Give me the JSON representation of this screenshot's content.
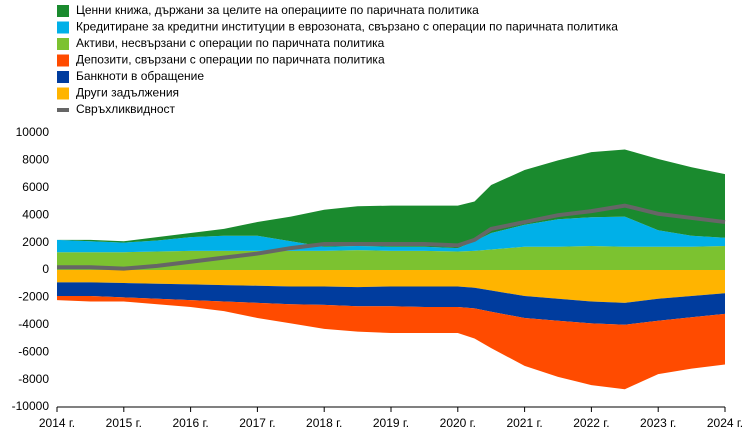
{
  "chart_data": {
    "type": "area",
    "x": [
      2014,
      2014.5,
      2015,
      2015.5,
      2016,
      2016.5,
      2017,
      2017.5,
      2018,
      2018.5,
      2019,
      2019.5,
      2020,
      2020.25,
      2020.5,
      2021,
      2021.5,
      2022,
      2022.5,
      2023,
      2023.5,
      2024
    ],
    "series": [
      {
        "name": "Ценни книжа, държани за целите на операциите по паричната политика",
        "type": "area",
        "color": "#1a8a2e",
        "values": [
          0,
          100,
          100,
          250,
          300,
          500,
          1000,
          1800,
          2700,
          2900,
          3000,
          3000,
          3100,
          2900,
          3500,
          4000,
          4300,
          4750,
          4900,
          5200,
          5000,
          4650
        ]
      },
      {
        "name": "Кредитиране за кредитни институции в еврозоната, свързано с операции по паричната политика",
        "type": "area",
        "color": "#00b0e8",
        "values": [
          900,
          800,
          700,
          800,
          1000,
          1100,
          1100,
          700,
          300,
          300,
          300,
          300,
          250,
          700,
          1200,
          1600,
          2000,
          2100,
          2200,
          1200,
          800,
          600
        ]
      },
      {
        "name": "Активи, несвързани с операции по паричната политика",
        "type": "area",
        "color": "#7cc230",
        "values": [
          1300,
          1300,
          1300,
          1350,
          1400,
          1400,
          1400,
          1400,
          1400,
          1450,
          1400,
          1400,
          1350,
          1400,
          1500,
          1700,
          1700,
          1750,
          1700,
          1700,
          1700,
          1750
        ]
      },
      {
        "name": "Депозити, свързани с операции по паричната политика",
        "type": "area",
        "color": "#ff4b00",
        "values": [
          -300,
          -400,
          -300,
          -400,
          -500,
          -700,
          -1100,
          -1400,
          -1750,
          -1850,
          -1950,
          -1900,
          -1900,
          -2200,
          -2650,
          -3500,
          -4100,
          -4500,
          -4700,
          -3900,
          -3750,
          -3700
        ]
      },
      {
        "name": "Банкноти в обращение",
        "type": "area",
        "color": "#003c9e",
        "values": [
          -1000,
          -1000,
          -1050,
          -1100,
          -1150,
          -1200,
          -1250,
          -1300,
          -1350,
          -1400,
          -1450,
          -1500,
          -1500,
          -1500,
          -1550,
          -1600,
          -1600,
          -1600,
          -1600,
          -1600,
          -1550,
          -1500
        ]
      },
      {
        "name": "Други задължения",
        "type": "area",
        "color": "#ffb400",
        "values": [
          -900,
          -900,
          -950,
          -1000,
          -1050,
          -1100,
          -1150,
          -1200,
          -1200,
          -1250,
          -1200,
          -1200,
          -1200,
          -1300,
          -1500,
          -1900,
          -2100,
          -2300,
          -2400,
          -2100,
          -1900,
          -1700
        ]
      },
      {
        "name": "Свръхликвидност",
        "type": "line",
        "color": "#666666",
        "values": [
          200,
          200,
          100,
          300,
          600,
          900,
          1200,
          1600,
          1900,
          1900,
          1900,
          1900,
          1800,
          2200,
          3000,
          3500,
          4000,
          4300,
          4700,
          4100,
          3800,
          3500
        ]
      }
    ],
    "xlim": [
      2014,
      2024
    ],
    "xticks": [
      {
        "value": 2014,
        "label": "2014 г."
      },
      {
        "value": 2015,
        "label": "2015 г."
      },
      {
        "value": 2016,
        "label": "2016 г."
      },
      {
        "value": 2017,
        "label": "2017 г."
      },
      {
        "value": 2018,
        "label": "2018 г."
      },
      {
        "value": 2019,
        "label": "2019 г."
      },
      {
        "value": 2020,
        "label": "2020 г."
      },
      {
        "value": 2021,
        "label": "2021 г."
      },
      {
        "value": 2022,
        "label": "2022 г."
      },
      {
        "value": 2023,
        "label": "2023 г."
      },
      {
        "value": 2024,
        "label": "2024 г."
      }
    ],
    "ylim": [
      -10000,
      10000
    ],
    "yticks": [
      -10000,
      -8000,
      -6000,
      -4000,
      -2000,
      0,
      2000,
      4000,
      6000,
      8000,
      10000
    ],
    "grid": false
  }
}
